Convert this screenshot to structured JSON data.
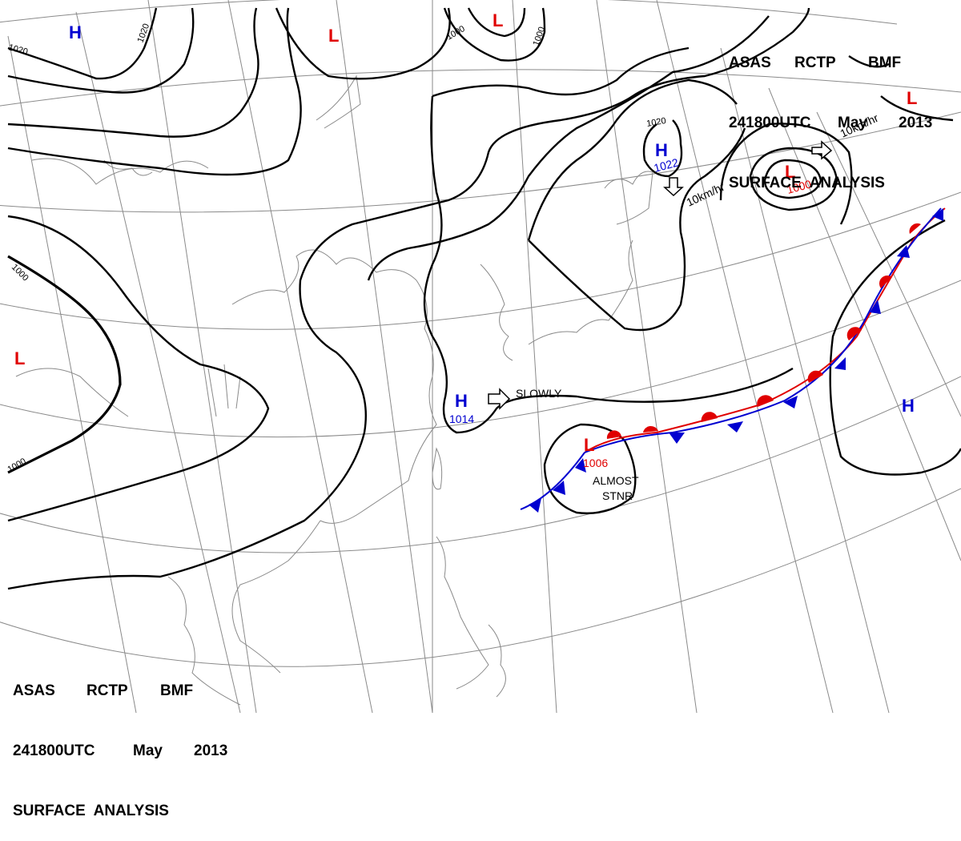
{
  "title": {
    "line1": [
      "ASAS",
      "RCTP",
      "BMF"
    ],
    "line2": [
      "241800UTC",
      "May",
      "2013"
    ],
    "line3": "SURFACE  ANALYSIS"
  },
  "colors": {
    "low": "#e00000",
    "high": "#0000d0",
    "isobar": "#000000",
    "grid": "#777777",
    "coast": "#888888",
    "warm_front": "#e00000",
    "cold_front": "#0000d0"
  },
  "pressure_centers": [
    {
      "type": "H",
      "value": "",
      "color": "#0000d0"
    },
    {
      "type": "L",
      "value": "",
      "color": "#e00000"
    },
    {
      "type": "L",
      "value": "",
      "color": "#e00000"
    },
    {
      "type": "H",
      "value": "1022",
      "color": "#0000d0"
    },
    {
      "type": "L",
      "value": "1000",
      "color": "#e00000"
    },
    {
      "type": "L",
      "value": "",
      "color": "#e00000"
    },
    {
      "type": "L",
      "value": "",
      "color": "#e00000"
    },
    {
      "type": "H",
      "value": "1014",
      "color": "#0000d0"
    },
    {
      "type": "L",
      "value": "1006",
      "color": "#e00000"
    },
    {
      "type": "H",
      "value": "",
      "color": "#0000d0"
    }
  ],
  "isobar_labels": [
    "1020",
    "1000",
    "1000",
    "1020",
    "1020",
    "1000",
    "1000"
  ],
  "motion_labels": [
    "10km/hr",
    "10km/hr",
    "SLOWLY"
  ],
  "stationary_label": [
    "ALMOST",
    "STNR"
  ]
}
